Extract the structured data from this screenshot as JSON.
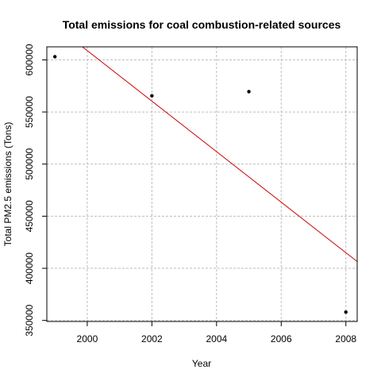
{
  "chart_data": {
    "type": "scatter",
    "title": "Total emissions for coal combustion-related sources",
    "xlabel": "Year",
    "ylabel": "Total PM2.5 emissions (Tons)",
    "xlim": [
      1998.75,
      2008.35
    ],
    "ylim": [
      349000,
      612500
    ],
    "xticks": [
      2000,
      2002,
      2004,
      2006,
      2008
    ],
    "yticks": [
      350000,
      400000,
      450000,
      500000,
      550000,
      600000
    ],
    "grid": true,
    "points": [
      {
        "x": 1999,
        "y": 603000
      },
      {
        "x": 2002,
        "y": 565500
      },
      {
        "x": 2005,
        "y": 569500
      },
      {
        "x": 2008,
        "y": 358000
      }
    ],
    "fit_line": {
      "color": "#cc0000",
      "x": [
        1999.85,
        2008.35
      ],
      "y": [
        612500,
        406500
      ]
    },
    "point_color": "#000000"
  }
}
